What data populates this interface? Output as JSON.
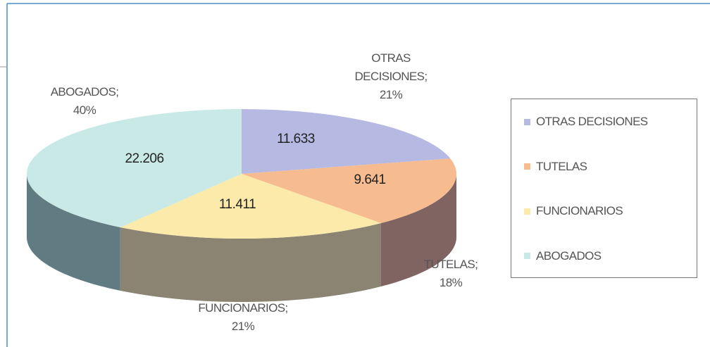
{
  "chart_data": {
    "type": "pie",
    "categories": [
      "OTRAS DECISIONES",
      "TUTELAS",
      "FUNCIONARIOS",
      "ABOGADOS"
    ],
    "values": [
      11633,
      9641,
      11411,
      22206
    ],
    "value_labels": [
      "11.633",
      "9.641",
      "11.411",
      "22.206"
    ],
    "slice_labels": [
      "OTRAS DECISIONES;",
      "TUTELAS;",
      "FUNCIONARIOS;",
      "ABOGADOS;"
    ],
    "percent_labels": [
      "21%",
      "18%",
      "21%",
      "40%"
    ],
    "colors": [
      "#b6b9e2",
      "#f6bb8e",
      "#fbeaa9",
      "#c9e9e7"
    ],
    "side_colors": [
      "#7d7f9e",
      "#7f6461",
      "#8b8472",
      "#607c82"
    ],
    "legend": "right"
  }
}
